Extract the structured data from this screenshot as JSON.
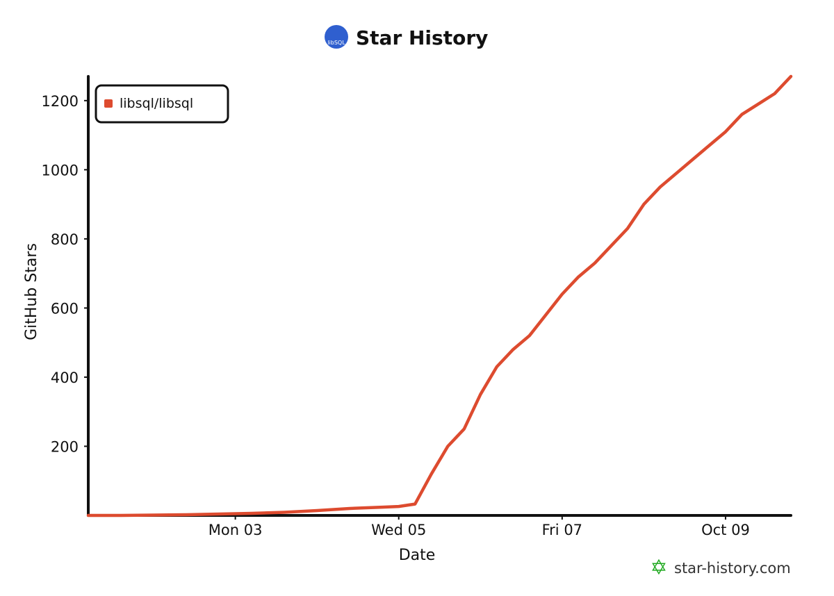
{
  "chart_data": {
    "type": "line",
    "title": "Star History",
    "title_logo_text": "libSQL",
    "xlabel": "Date",
    "ylabel": "GitHub Stars",
    "x_ticks": [
      "Mon 03",
      "Wed 05",
      "Fri 07",
      "Oct 09"
    ],
    "y_ticks": [
      200,
      400,
      600,
      800,
      1000,
      1200
    ],
    "ylim": [
      0,
      1270
    ],
    "xlim_days": [
      -1.8,
      6.8
    ],
    "legend_position": "top-left",
    "grid": false,
    "series": [
      {
        "name": "libsql/libsql",
        "color": "#dd4b2f",
        "x_days": [
          -1.8,
          -1.4,
          -1.0,
          -0.6,
          -0.2,
          0.2,
          0.6,
          1.0,
          1.4,
          1.8,
          2.0,
          2.2,
          2.4,
          2.6,
          2.8,
          3.0,
          3.2,
          3.4,
          3.6,
          3.8,
          4.0,
          4.2,
          4.4,
          4.6,
          4.8,
          5.0,
          5.2,
          5.4,
          5.6,
          5.8,
          6.0,
          6.2,
          6.4,
          6.6,
          6.8
        ],
        "y": [
          0,
          0,
          1,
          2,
          4,
          6,
          9,
          14,
          20,
          24,
          26,
          33,
          120,
          200,
          250,
          350,
          430,
          480,
          520,
          580,
          640,
          690,
          730,
          780,
          830,
          900,
          950,
          990,
          1030,
          1070,
          1110,
          1160,
          1190,
          1220,
          1270
        ]
      }
    ]
  },
  "watermark": {
    "text": "star-history.com",
    "color": "#22aa22"
  }
}
